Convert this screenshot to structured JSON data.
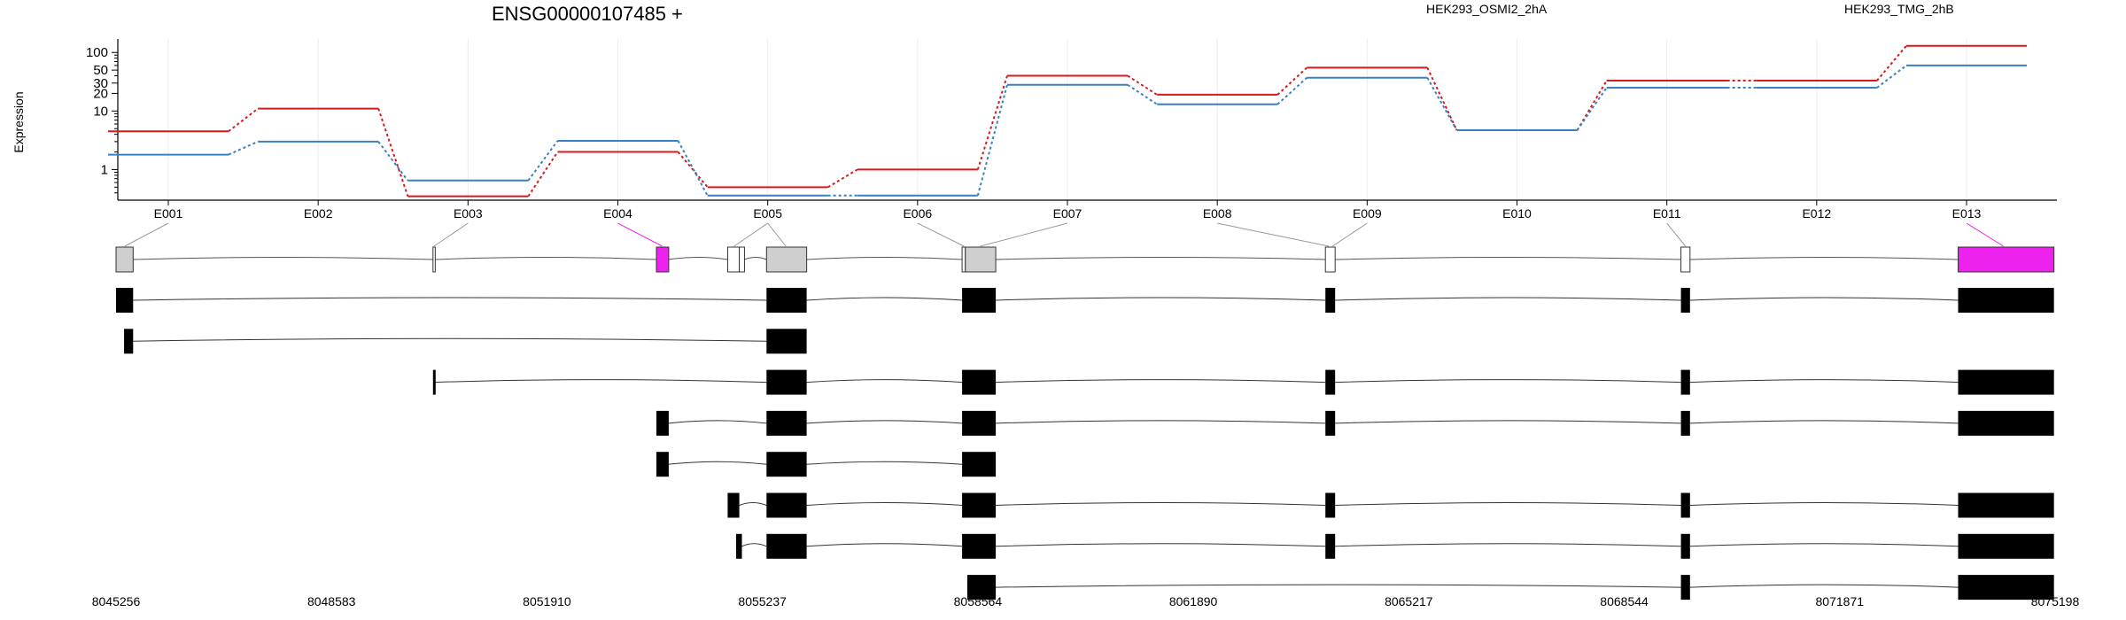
{
  "chart_data": {
    "type": "line",
    "title": "ENSG00000107485 +",
    "ylabel": "Expression",
    "yscale": "log",
    "ylim": [
      0.3,
      170
    ],
    "yticks": [
      "1",
      "10",
      "20",
      "30",
      "50",
      "100"
    ],
    "colors": {
      "HEK293_OSMI2_2hA": "#d7191c",
      "HEK293_TMG_2hB": "#3a7fc1"
    },
    "series": [
      {
        "name": "HEK293_OSMI2_2hA",
        "values": [
          4.5,
          11,
          0.35,
          2.0,
          0.5,
          1.0,
          40,
          19,
          55,
          4.7,
          33,
          33,
          130
        ]
      },
      {
        "name": "HEK293_TMG_2hB",
        "values": [
          1.8,
          3.0,
          0.65,
          3.1,
          0.36,
          0.36,
          28,
          13,
          37,
          4.7,
          25,
          25,
          60
        ]
      }
    ],
    "exons": [
      "E001",
      "E002",
      "E003",
      "E004",
      "E005",
      "E006",
      "E007",
      "E008",
      "E009",
      "E010",
      "E011",
      "E012",
      "E013"
    ],
    "highlighted_exons": [
      "E004",
      "E013"
    ],
    "highlight_color": "#ee22ee",
    "genomic_axis": [
      "8045256",
      "8048583",
      "8051910",
      "8055237",
      "8058564",
      "8061890",
      "8065217",
      "8068544",
      "8071871",
      "8075198"
    ],
    "genomic_range": [
      8045256,
      8075198
    ],
    "gene_model": {
      "blocks": [
        {
          "start": 8045256,
          "end": 8045520
        },
        {
          "start": 8050150,
          "end": 8050185
        },
        {
          "start": 8053600,
          "end": 8053790,
          "highlight": true
        },
        {
          "start": 8054700,
          "end": 8054880
        },
        {
          "start": 8054880,
          "end": 8054960
        },
        {
          "start": 8055300,
          "end": 8055920
        },
        {
          "start": 8058320,
          "end": 8058370
        },
        {
          "start": 8058370,
          "end": 8058840
        },
        {
          "start": 8063930,
          "end": 8064080
        },
        {
          "start": 8069420,
          "end": 8069560
        },
        {
          "start": 8073700,
          "end": 8075180,
          "highlight": true
        }
      ],
      "exon_anchors": [
        8045390,
        8050165,
        8053690,
        8054800,
        8055600,
        8058350,
        8058600,
        8063980,
        8064040,
        8069490,
        8074400
      ]
    },
    "transcripts": [
      [
        [
          8045256,
          8045520
        ],
        [
          8055300,
          8055920
        ],
        [
          8058320,
          8058840
        ],
        [
          8063930,
          8064080
        ],
        [
          8069420,
          8069560
        ],
        [
          8073700,
          8075180
        ]
      ],
      [
        [
          8045380,
          8045520
        ],
        [
          8055300,
          8055920
        ]
      ],
      [
        [
          8050150,
          8050180
        ],
        [
          8055300,
          8055920
        ],
        [
          8058320,
          8058840
        ],
        [
          8063930,
          8064080
        ],
        [
          8069420,
          8069560
        ],
        [
          8073700,
          8075180
        ]
      ],
      [
        [
          8053600,
          8053790
        ],
        [
          8055300,
          8055920
        ],
        [
          8058320,
          8058840
        ],
        [
          8063930,
          8064080
        ],
        [
          8069420,
          8069560
        ],
        [
          8073700,
          8075180
        ]
      ],
      [
        [
          8053600,
          8053790
        ],
        [
          8055300,
          8055920
        ],
        [
          8058320,
          8058840
        ]
      ],
      [
        [
          8054700,
          8054880
        ],
        [
          8055300,
          8055920
        ],
        [
          8058320,
          8058840
        ],
        [
          8063930,
          8064080
        ],
        [
          8069420,
          8069560
        ],
        [
          8073700,
          8075180
        ]
      ],
      [
        [
          8054830,
          8054920
        ],
        [
          8055300,
          8055920
        ],
        [
          8058320,
          8058840
        ],
        [
          8063930,
          8064080
        ],
        [
          8069420,
          8069560
        ],
        [
          8073700,
          8075180
        ]
      ],
      [
        [
          8058400,
          8058840
        ],
        [
          8069420,
          8069560
        ],
        [
          8073700,
          8075180
        ]
      ]
    ]
  }
}
